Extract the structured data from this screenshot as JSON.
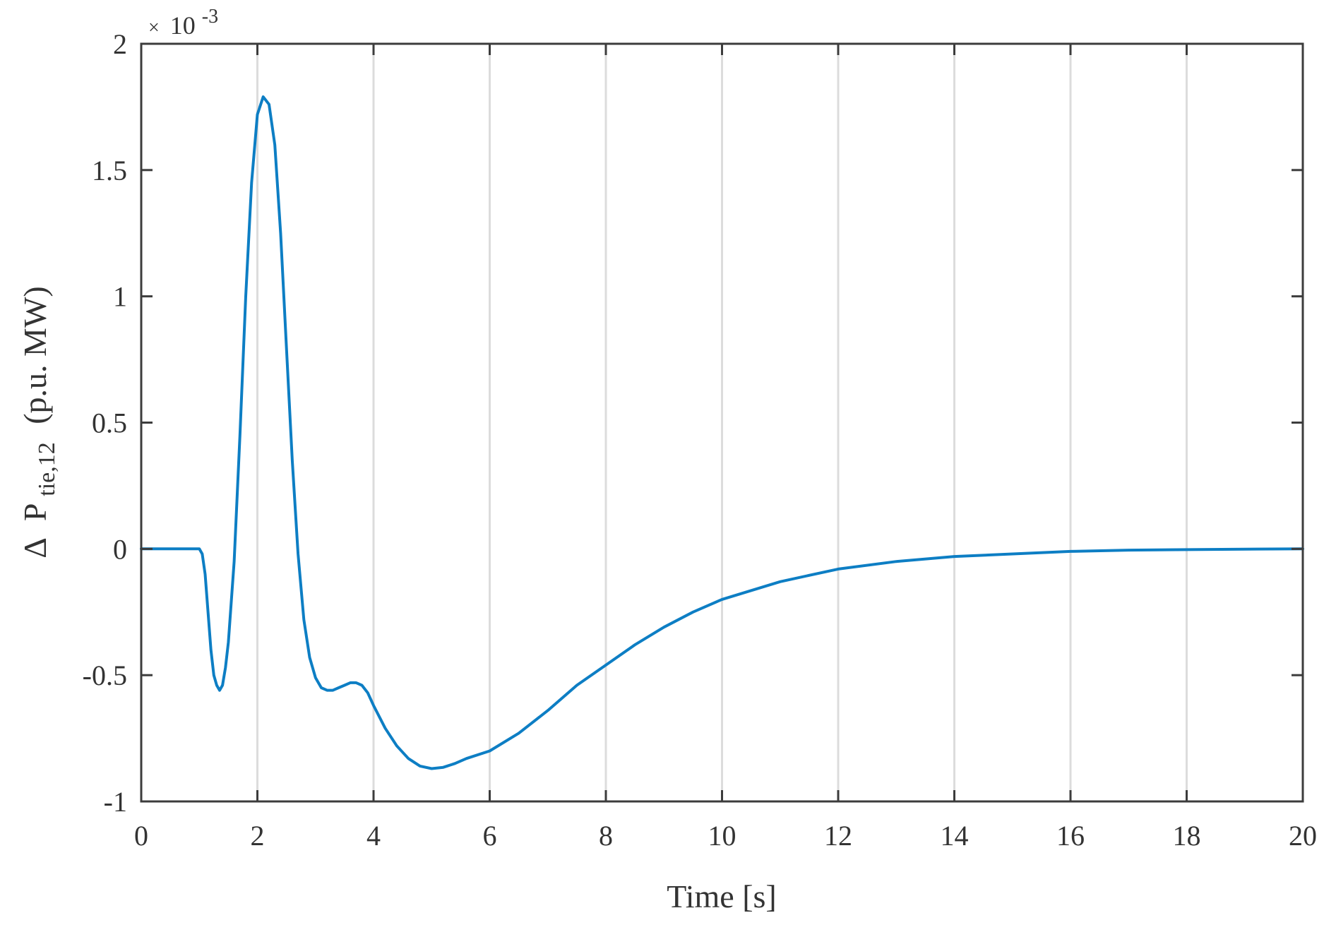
{
  "chart_data": {
    "type": "line",
    "xlabel": "Time [s]",
    "ylabel": {
      "delta": "Δ",
      "symbol": "P",
      "subscript": "tie,12",
      "unit": "(p.u. MW)"
    },
    "y_multiplier": {
      "times": "×",
      "base": "10",
      "exponent": "-3"
    },
    "xlim": [
      0,
      20
    ],
    "ylim": [
      -1,
      2
    ],
    "xticks": [
      0,
      2,
      4,
      6,
      8,
      10,
      12,
      14,
      16,
      18,
      20
    ],
    "xtick_labels": [
      "0",
      "2",
      "4",
      "6",
      "8",
      "10",
      "12",
      "14",
      "16",
      "18",
      "20"
    ],
    "yticks": [
      -1,
      -0.5,
      0,
      0.5,
      1,
      1.5,
      2
    ],
    "ytick_labels": [
      "-1",
      "-0.5",
      "0",
      "0.5",
      "1",
      "1.5",
      "2"
    ],
    "grid": "vertical",
    "colors": {
      "line": "#0d7ec4",
      "grid": "#dcdcdc",
      "axes": "#3c3c3c"
    },
    "series": [
      {
        "x": [
          0,
          0.5,
          1.0,
          1.05,
          1.1,
          1.15,
          1.2,
          1.25,
          1.3,
          1.35,
          1.4,
          1.45,
          1.5,
          1.6,
          1.7,
          1.8,
          1.9,
          2.0,
          2.1,
          2.2,
          2.3,
          2.4,
          2.5,
          2.6,
          2.7,
          2.8,
          2.9,
          3.0,
          3.1,
          3.2,
          3.3,
          3.4,
          3.5,
          3.6,
          3.7,
          3.8,
          3.9,
          4.0,
          4.2,
          4.4,
          4.6,
          4.8,
          5.0,
          5.2,
          5.4,
          5.6,
          6.0,
          6.5,
          7.0,
          7.5,
          8.0,
          8.5,
          9.0,
          9.5,
          10.0,
          11.0,
          12.0,
          13.0,
          14.0,
          15.0,
          16.0,
          17.0,
          18.0,
          19.0,
          20.0
        ],
        "y": [
          0,
          0,
          0,
          -0.02,
          -0.1,
          -0.25,
          -0.4,
          -0.5,
          -0.54,
          -0.56,
          -0.54,
          -0.47,
          -0.37,
          -0.05,
          0.45,
          1.0,
          1.45,
          1.72,
          1.79,
          1.76,
          1.6,
          1.25,
          0.8,
          0.35,
          -0.02,
          -0.28,
          -0.43,
          -0.51,
          -0.55,
          -0.56,
          -0.56,
          -0.55,
          -0.54,
          -0.53,
          -0.53,
          -0.54,
          -0.57,
          -0.62,
          -0.71,
          -0.78,
          -0.83,
          -0.86,
          -0.87,
          -0.865,
          -0.85,
          -0.83,
          -0.8,
          -0.73,
          -0.64,
          -0.54,
          -0.46,
          -0.38,
          -0.31,
          -0.25,
          -0.2,
          -0.13,
          -0.08,
          -0.05,
          -0.03,
          -0.02,
          -0.01,
          -0.005,
          -0.003,
          -0.001,
          0.0
        ]
      }
    ]
  }
}
